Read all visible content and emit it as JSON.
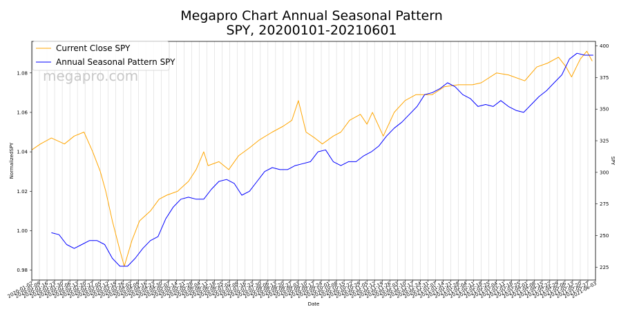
{
  "chart_data": {
    "type": "line",
    "title_line1": "Megapro Chart Annual Seasonal Pattern",
    "title_line2": "SPY, 20200101-20210601",
    "xlabel": "Date",
    "ylabel_left": "NormalizedSPY",
    "ylabel_right": "SPY",
    "watermark": "megapro.com",
    "legend_position": "top-left",
    "grid": "vertical",
    "ylim_left": [
      0.975,
      1.096
    ],
    "ylim_right": [
      214.8,
      403.6
    ],
    "yticks_left": [
      "0.98",
      "1.00",
      "1.02",
      "1.04",
      "1.06",
      "1.08"
    ],
    "yticks_right": [
      "225",
      "250",
      "275",
      "300",
      "325",
      "350",
      "375",
      "400"
    ],
    "x_start": "2020-01-02",
    "x_end": "2021-06-03",
    "x_tick_interval_days": 7,
    "colors": {
      "current": "#ffa500",
      "seasonal": "#0000ff"
    },
    "series": [
      {
        "name": "Current Close SPY",
        "axis": "left",
        "dates": [
          "2020-01-02",
          "2020-01-10",
          "2020-01-20",
          "2020-02-01",
          "2020-02-10",
          "2020-02-19",
          "2020-02-27",
          "2020-03-05",
          "2020-03-10",
          "2020-03-16",
          "2020-03-23",
          "2020-03-27",
          "2020-04-03",
          "2020-04-10",
          "2020-04-20",
          "2020-04-28",
          "2020-05-05",
          "2020-05-15",
          "2020-05-25",
          "2020-06-01",
          "2020-06-08",
          "2020-06-12",
          "2020-06-22",
          "2020-07-01",
          "2020-07-10",
          "2020-07-20",
          "2020-07-29",
          "2020-08-10",
          "2020-08-20",
          "2020-08-28",
          "2020-09-03",
          "2020-09-10",
          "2020-09-18",
          "2020-09-25",
          "2020-10-05",
          "2020-10-12",
          "2020-10-20",
          "2020-10-30",
          "2020-11-05",
          "2020-11-10",
          "2020-11-20",
          "2020-11-30",
          "2020-12-10",
          "2020-12-20",
          "2021-01-04",
          "2021-01-15",
          "2021-01-28",
          "2021-02-10",
          "2021-02-18",
          "2021-03-04",
          "2021-03-15",
          "2021-03-30",
          "2021-04-10",
          "2021-04-20",
          "2021-04-30",
          "2021-05-07",
          "2021-05-12",
          "2021-05-20",
          "2021-05-26",
          "2021-05-31"
        ],
        "values": [
          1.041,
          1.044,
          1.047,
          1.044,
          1.048,
          1.05,
          1.04,
          1.03,
          1.02,
          1.005,
          0.99,
          0.982,
          0.995,
          1.005,
          1.01,
          1.016,
          1.018,
          1.02,
          1.025,
          1.031,
          1.04,
          1.033,
          1.035,
          1.031,
          1.038,
          1.042,
          1.046,
          1.05,
          1.053,
          1.056,
          1.066,
          1.05,
          1.047,
          1.044,
          1.048,
          1.05,
          1.056,
          1.059,
          1.054,
          1.06,
          1.048,
          1.06,
          1.066,
          1.069,
          1.069,
          1.073,
          1.074,
          1.074,
          1.075,
          1.08,
          1.079,
          1.076,
          1.083,
          1.085,
          1.088,
          1.083,
          1.078,
          1.087,
          1.091,
          1.086
        ]
      },
      {
        "name": "Annual Seasonal Pattern SPY",
        "axis": "left",
        "dates": [
          "2020-01-20",
          "2020-01-27",
          "2020-02-03",
          "2020-02-10",
          "2020-02-17",
          "2020-02-24",
          "2020-03-02",
          "2020-03-09",
          "2020-03-16",
          "2020-03-23",
          "2020-03-30",
          "2020-04-06",
          "2020-04-13",
          "2020-04-20",
          "2020-04-27",
          "2020-05-04",
          "2020-05-11",
          "2020-05-18",
          "2020-05-25",
          "2020-06-01",
          "2020-06-08",
          "2020-06-15",
          "2020-06-22",
          "2020-06-29",
          "2020-07-06",
          "2020-07-13",
          "2020-07-20",
          "2020-07-27",
          "2020-08-03",
          "2020-08-10",
          "2020-08-17",
          "2020-08-24",
          "2020-08-31",
          "2020-09-07",
          "2020-09-14",
          "2020-09-21",
          "2020-09-28",
          "2020-10-05",
          "2020-10-12",
          "2020-10-19",
          "2020-10-26",
          "2020-11-02",
          "2020-11-09",
          "2020-11-16",
          "2020-11-23",
          "2020-11-30",
          "2020-12-07",
          "2020-12-14",
          "2020-12-21",
          "2020-12-28",
          "2021-01-04",
          "2021-01-11",
          "2021-01-18",
          "2021-01-25",
          "2021-02-01",
          "2021-02-08",
          "2021-02-15",
          "2021-02-22",
          "2021-03-01",
          "2021-03-08",
          "2021-03-15",
          "2021-03-22",
          "2021-03-29",
          "2021-04-05",
          "2021-04-12",
          "2021-04-19",
          "2021-04-26",
          "2021-05-03",
          "2021-05-10",
          "2021-05-17",
          "2021-05-24",
          "2021-06-01"
        ],
        "values": [
          0.999,
          0.998,
          0.993,
          0.991,
          0.993,
          0.995,
          0.995,
          0.993,
          0.986,
          0.982,
          0.982,
          0.986,
          0.991,
          0.995,
          0.997,
          1.006,
          1.012,
          1.016,
          1.017,
          1.016,
          1.016,
          1.021,
          1.025,
          1.026,
          1.024,
          1.018,
          1.02,
          1.025,
          1.03,
          1.032,
          1.031,
          1.031,
          1.033,
          1.034,
          1.035,
          1.04,
          1.041,
          1.035,
          1.033,
          1.035,
          1.035,
          1.038,
          1.04,
          1.043,
          1.048,
          1.052,
          1.055,
          1.059,
          1.063,
          1.069,
          1.07,
          1.072,
          1.075,
          1.073,
          1.069,
          1.067,
          1.063,
          1.064,
          1.063,
          1.066,
          1.063,
          1.061,
          1.06,
          1.064,
          1.068,
          1.071,
          1.075,
          1.079,
          1.087,
          1.09,
          1.089,
          1.089
        ]
      }
    ]
  }
}
